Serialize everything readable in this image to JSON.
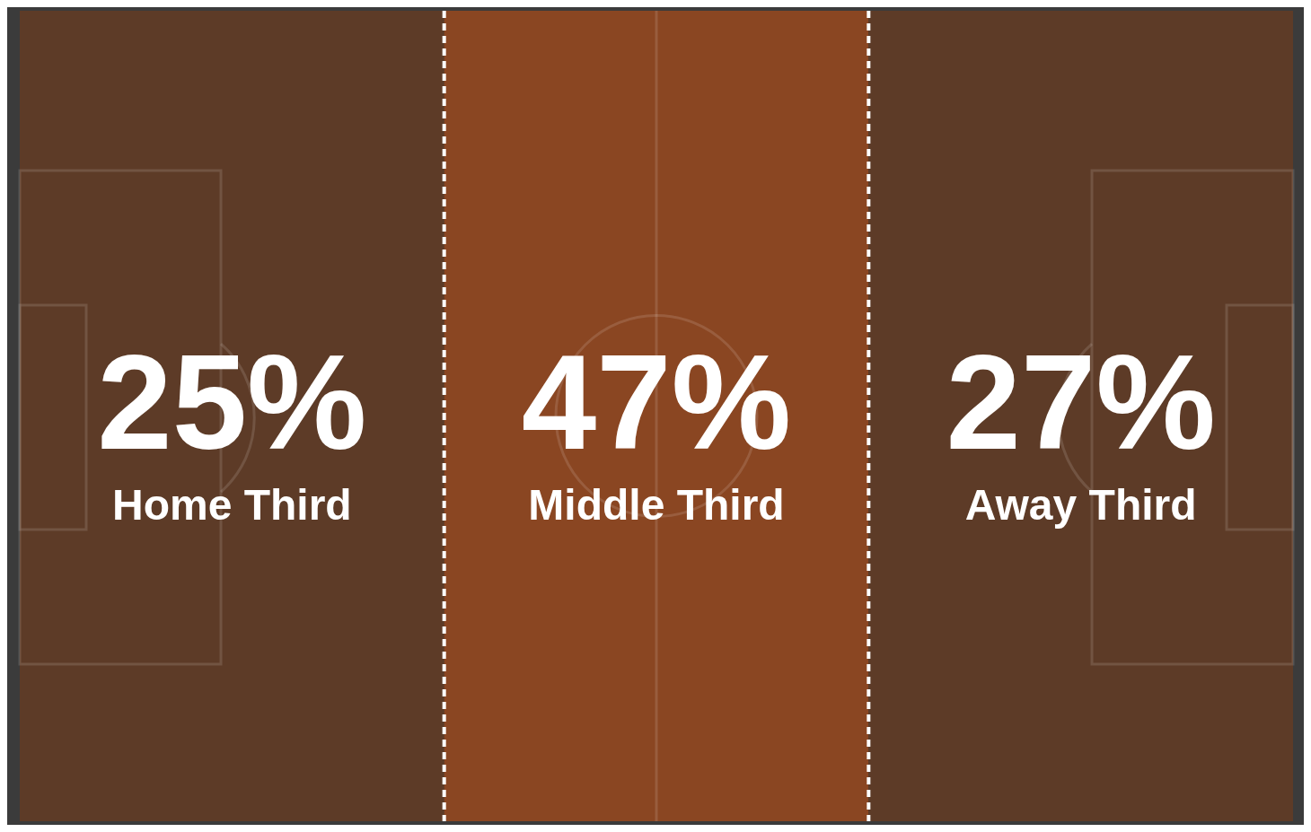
{
  "chart_data": {
    "type": "other",
    "categories": [
      "Home Third",
      "Middle Third",
      "Away Third"
    ],
    "values": [
      25,
      47,
      27
    ],
    "value_labels": [
      "25%",
      "47%",
      "27%"
    ],
    "colors": [
      "#5d3b27",
      "#8a4622",
      "#5d3b27"
    ]
  }
}
